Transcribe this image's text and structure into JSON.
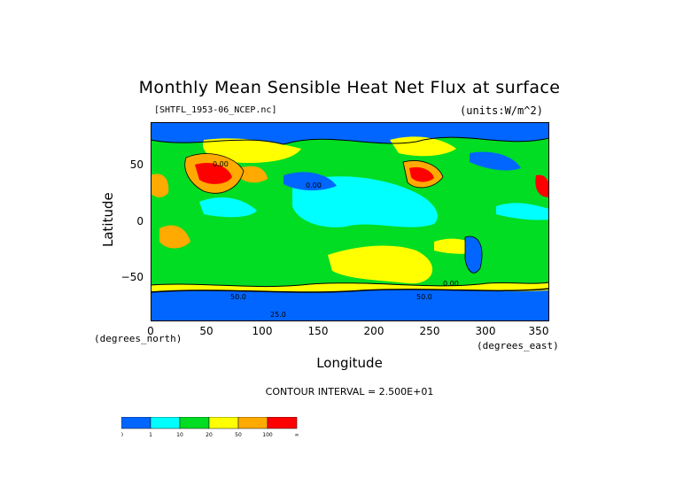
{
  "chart_data": {
    "type": "heatmap",
    "title": "Monthly Mean Sensible Heat Net Flux at surface",
    "source": "[SHTFL_1953-06_NCEP.nc]",
    "units": "(units:W/m^2)",
    "xlabel": "Longitude",
    "ylabel": "Latitude",
    "x_units": "(degrees_east)",
    "y_units": "(degrees_north)",
    "x_ticks": [
      "0",
      "50",
      "100",
      "150",
      "200",
      "250",
      "300",
      "350"
    ],
    "y_ticks": [
      "50",
      "0",
      "−50"
    ],
    "xlim": [
      0,
      357.5
    ],
    "ylim": [
      -90,
      90
    ],
    "contour_interval": "CONTOUR INTERVAL = 2.500E+01",
    "colorbar": {
      "colors": [
        "#0066ff",
        "#00ffff",
        "#00dd22",
        "#ffff00",
        "#ffaa00",
        "#ff0000"
      ],
      "labels": [
        "0",
        "1",
        "10",
        "20",
        "50",
        "100",
        "∞"
      ]
    },
    "contour_labels": [
      "0.00",
      "50.0",
      "0.00",
      "25.0",
      "0.00",
      "50.0"
    ]
  }
}
